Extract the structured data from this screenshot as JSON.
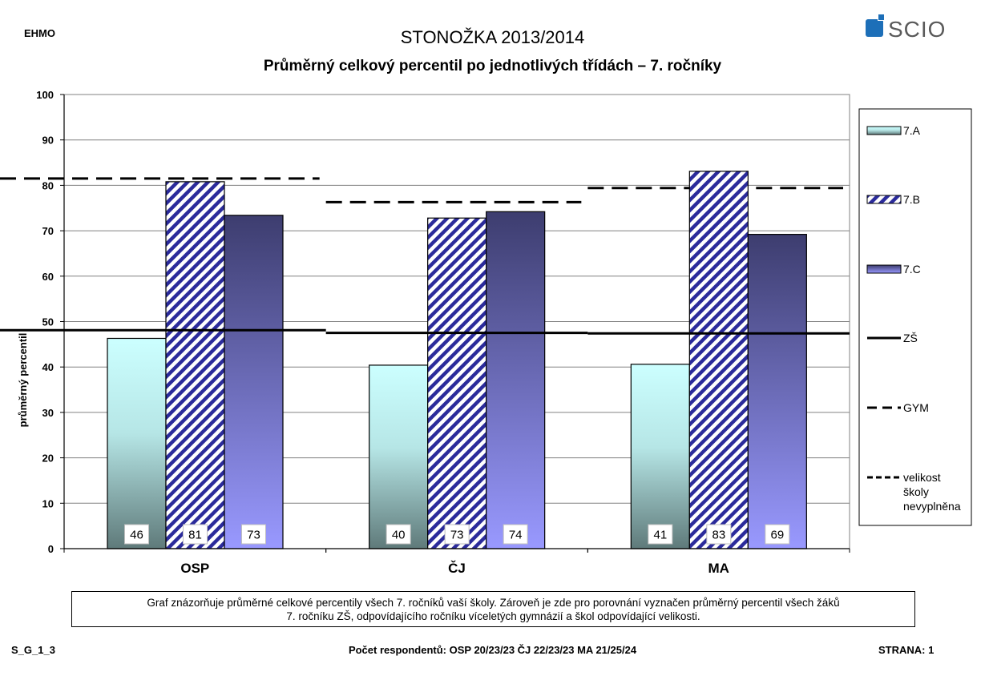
{
  "header": {
    "code": "EHMO",
    "title": "STONOŽKA 2013/2014",
    "subtitle": "Průměrný celkový percentil po jednotlivých třídách – 7. ročníky",
    "logo_text": "SCIO"
  },
  "chart_data": {
    "type": "bar",
    "ylabel": "průměrný percentil",
    "ylim": [
      0,
      100
    ],
    "yticks": [
      0,
      10,
      20,
      30,
      40,
      50,
      60,
      70,
      80,
      90,
      100
    ],
    "grid": true,
    "categories": [
      "OSP",
      "ČJ",
      "MA"
    ],
    "series": [
      {
        "name": "7.A",
        "values": [
          46,
          40,
          41
        ],
        "plotted": [
          46.3,
          40.4,
          40.6
        ]
      },
      {
        "name": "7.B",
        "values": [
          81,
          73,
          83
        ],
        "plotted": [
          80.8,
          72.8,
          83.1
        ]
      },
      {
        "name": "7.C",
        "values": [
          73,
          74,
          69
        ],
        "plotted": [
          73.4,
          74.2,
          69.2
        ]
      }
    ],
    "reference_lines": [
      {
        "name": "ZŠ",
        "style": "solid",
        "values": [
          48.1,
          47.5,
          47.4
        ]
      },
      {
        "name": "GYM",
        "style": "dashed",
        "values": [
          81.5,
          76.3,
          79.4
        ]
      }
    ],
    "legend": {
      "placement": "right",
      "entries": [
        "7.A",
        "7.B",
        "7.C",
        "ZŠ",
        "GYM",
        "velikost školy nevyplněna"
      ]
    }
  },
  "note": {
    "line1": "Graf znázorňuje průměrné celkové percentily všech 7. ročníků vaší školy. Zároveň je zde pro porovnání vyznačen průměrný percentil všech žáků",
    "line2": "7. ročníku ZŠ, odpovídajícího ročníku víceletých gymnázií a škol odpovídající velikosti."
  },
  "footer": {
    "left": "S_G_1_3",
    "middle": "Počet respondentů: OSP 20/23/23  ČJ 22/23/23  MA 21/25/24",
    "right": "STRANA: 1"
  },
  "colors": {
    "bar_a_top": "#ccffff",
    "bar_a_bottom": "#5f7a7a",
    "bar_b_stripe": "#2b2b9b",
    "bar_c_top": "#3d3d6f",
    "bar_c_bottom": "#9999ff",
    "logo_blue": "#1d6fb8",
    "logo_gray": "#5a5a5a"
  }
}
